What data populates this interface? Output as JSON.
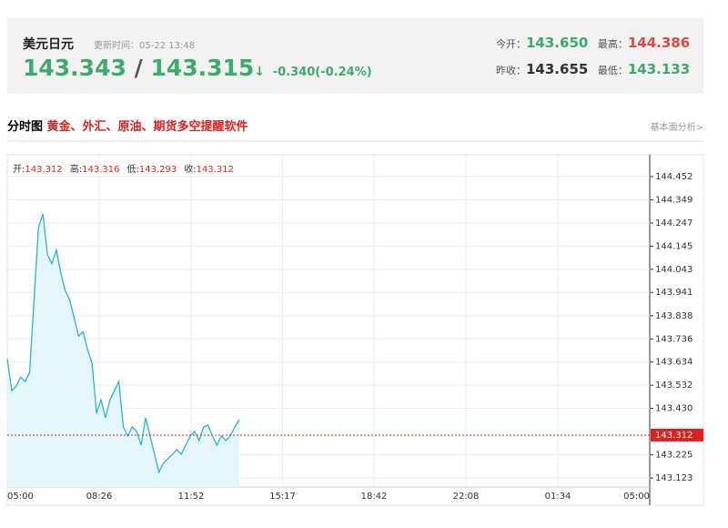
{
  "header": {
    "name": "美元日元",
    "update": "更新时间：05-22 13:48",
    "price": "143.343",
    "sep": "/",
    "price2": "143.315",
    "arrow": "↓",
    "change": "-0.340(-0.24%)",
    "open_label": "今开：",
    "open": "143.650",
    "high_label": "最高：",
    "high": "144.386",
    "prev_label": "昨收：",
    "prev": "143.655",
    "low_label": "最低：",
    "low": "143.133"
  },
  "section": {
    "title": "分时图",
    "promo": "黄金、外汇、原油、期货多空提醒软件",
    "link": "基本面分析>"
  },
  "ohlc": [
    {
      "label": "开:",
      "value": "143.312"
    },
    {
      "label": "高:",
      "value": "143.316"
    },
    {
      "label": "低:",
      "value": "143.293"
    },
    {
      "label": "收:",
      "value": "143.312"
    }
  ],
  "chart_data": {
    "type": "line",
    "x": [
      "05:00",
      "05:10",
      "05:20",
      "05:30",
      "05:40",
      "05:50",
      "06:00",
      "06:10",
      "06:20",
      "06:30",
      "06:40",
      "06:50",
      "07:00",
      "07:10",
      "07:20",
      "07:30",
      "07:40",
      "07:50",
      "08:00",
      "08:10",
      "08:20",
      "08:30",
      "08:40",
      "08:50",
      "09:00",
      "09:10",
      "09:20",
      "09:30",
      "09:40",
      "09:50",
      "10:00",
      "10:10",
      "10:20",
      "10:30",
      "10:40",
      "10:50",
      "11:00",
      "11:10",
      "11:20",
      "11:30",
      "11:40",
      "11:50",
      "12:00",
      "12:10",
      "12:20",
      "12:30",
      "12:40",
      "12:50",
      "13:00",
      "13:10",
      "13:20",
      "13:30",
      "13:40"
    ],
    "series": [
      {
        "color": "#2bb5c8",
        "values": [
          143.648,
          143.508,
          143.528,
          143.568,
          143.548,
          143.588,
          143.908,
          144.228,
          144.288,
          144.108,
          144.068,
          144.128,
          144.028,
          143.948,
          143.908,
          143.828,
          143.748,
          143.768,
          143.688,
          143.628,
          143.408,
          143.468,
          143.388,
          143.468,
          143.508,
          143.548,
          143.348,
          143.308,
          143.348,
          143.328,
          143.268,
          143.388,
          143.308,
          143.228,
          143.148,
          143.188,
          143.208,
          143.228,
          143.248,
          143.228,
          143.268,
          143.308,
          143.328,
          143.288,
          143.348,
          143.356,
          143.308,
          143.268,
          143.308,
          143.288,
          143.308,
          143.348,
          143.38
        ]
      }
    ],
    "xticks": [
      "05:00",
      "08:26",
      "11:52",
      "15:17",
      "18:42",
      "22:08",
      "01:34",
      "05:00"
    ],
    "ylim": [
      143.083,
      144.548
    ],
    "yticks": [
      143.123,
      143.225,
      {
        "value": 143.43,
        "label": "143.430"
      },
      143.532,
      143.634,
      143.736,
      143.838,
      143.941,
      144.043,
      144.145,
      144.247,
      144.349,
      144.452
    ],
    "current_price": 143.312,
    "grid": true
  }
}
